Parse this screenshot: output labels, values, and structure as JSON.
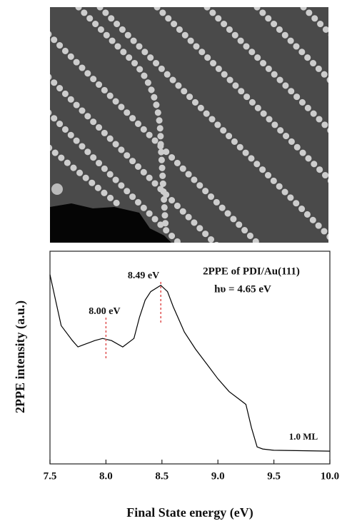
{
  "chart_data": {
    "type": "line",
    "title": "2PPE of PDI/Au(111)",
    "subtitle": "hυ = 4.65 eV",
    "x_label": "Final State energy (eV)",
    "y_label": "2PPE intensity (a.u.)",
    "coverage_label": "1.0 ML",
    "color": "#000000",
    "x": [
      7.5,
      7.55,
      7.6,
      7.7,
      7.75,
      7.8,
      7.9,
      7.97,
      8.05,
      8.15,
      8.25,
      8.3,
      8.35,
      8.4,
      8.49,
      8.55,
      8.6,
      8.7,
      8.8,
      8.9,
      9.0,
      9.1,
      9.2,
      9.25,
      9.3,
      9.35,
      9.4,
      9.5,
      10.0
    ],
    "values": [
      8.9,
      7.7,
      6.5,
      5.8,
      5.5,
      5.6,
      5.8,
      5.9,
      5.8,
      5.5,
      5.9,
      6.9,
      7.7,
      8.1,
      8.4,
      8.1,
      7.4,
      6.2,
      5.4,
      4.7,
      4.0,
      3.4,
      3.0,
      2.8,
      1.7,
      0.8,
      0.7,
      0.64,
      0.6
    ],
    "xlim": [
      7.5,
      10.0
    ],
    "ylim": [
      0,
      10
    ],
    "xticks": [
      7.5,
      {
        "value": 8,
        "label": "8.0"
      },
      8.5,
      {
        "value": 9,
        "label": "9.0"
      },
      9.5,
      {
        "value": 10,
        "label": "10.0"
      }
    ],
    "peaks": [
      {
        "x": 8.49,
        "label": "8.49 eV"
      },
      {
        "x": 8.0,
        "label": "8.00 eV"
      }
    ],
    "peak_color": "#e05050"
  }
}
